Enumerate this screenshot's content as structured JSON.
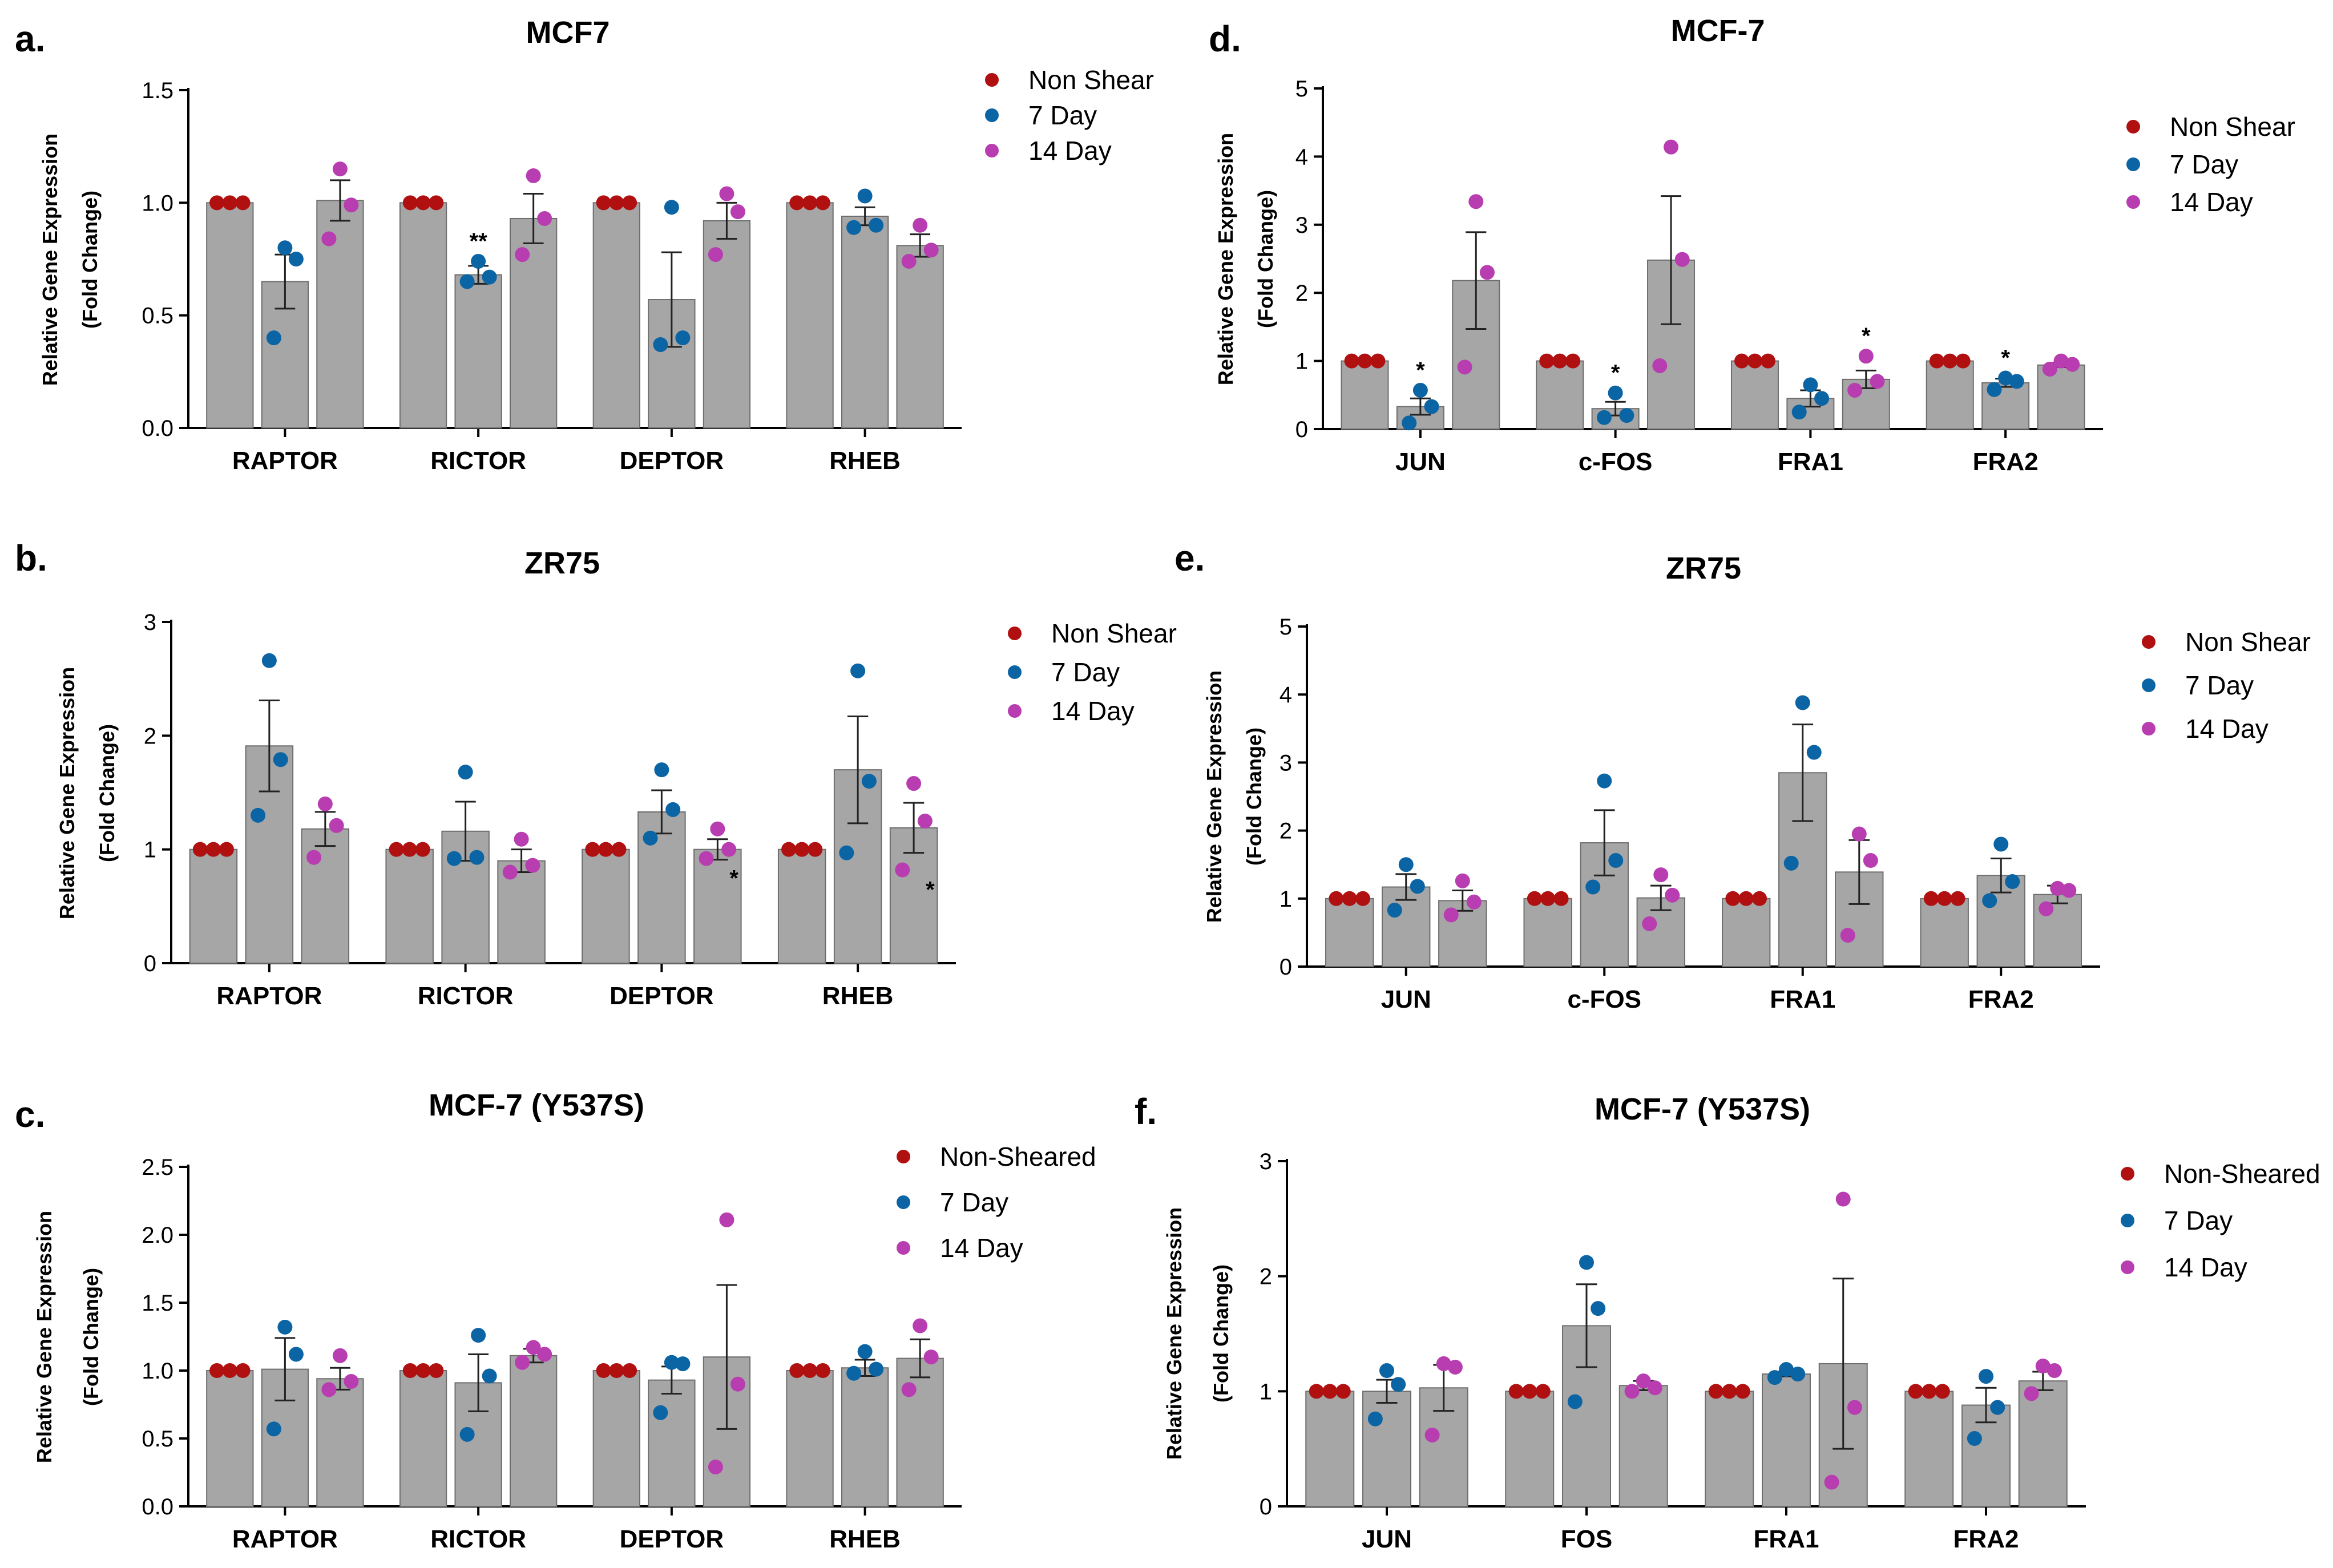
{
  "colors": {
    "non_shear": "#b01010",
    "day7": "#0b64a4",
    "day14": "#b83db0",
    "bar": "#a6a6a6",
    "bar_edge": "#6e6e6e"
  },
  "chart_data": [
    {
      "panel": "a.",
      "type": "bar",
      "title": "MCF7",
      "ylabel_line1": "Relative Gene Expression",
      "ylabel_line2": "(Fold Change)",
      "ylim": [
        0,
        1.5
      ],
      "yticks": [
        0,
        0.5,
        1.0,
        1.5
      ],
      "ytick_labels": [
        "0.0",
        "0.5",
        "1.0",
        "1.5"
      ],
      "categories": [
        "RAPTOR",
        "RICTOR",
        "DEPTOR",
        "RHEB"
      ],
      "legend": [
        "Non Shear",
        "7 Day",
        "14 Day"
      ],
      "series": [
        {
          "name": "Non Shear",
          "values": [
            1.0,
            1.0,
            1.0,
            1.0
          ],
          "sem": [
            0,
            0,
            0,
            0
          ],
          "points": [
            [
              1,
              1,
              1
            ],
            [
              1,
              1,
              1
            ],
            [
              1,
              1,
              1
            ],
            [
              1,
              1,
              1
            ]
          ],
          "sig": [
            "",
            "",
            "",
            ""
          ]
        },
        {
          "name": "7 Day",
          "values": [
            0.65,
            0.68,
            0.57,
            0.94
          ],
          "sem": [
            0.12,
            0.04,
            0.21,
            0.04
          ],
          "points": [
            [
              0.8,
              0.75,
              0.4
            ],
            [
              0.74,
              0.67,
              0.65
            ],
            [
              0.98,
              0.4,
              0.37
            ],
            [
              1.03,
              0.9,
              0.89
            ]
          ],
          "sig": [
            "",
            "**",
            "",
            ""
          ]
        },
        {
          "name": "14 Day",
          "values": [
            1.01,
            0.93,
            0.92,
            0.81
          ],
          "sem": [
            0.09,
            0.11,
            0.08,
            0.05
          ],
          "points": [
            [
              1.15,
              0.99,
              0.84
            ],
            [
              1.12,
              0.93,
              0.77
            ],
            [
              1.04,
              0.96,
              0.77
            ],
            [
              0.9,
              0.79,
              0.74
            ]
          ],
          "sig": [
            "",
            "",
            "",
            ""
          ]
        }
      ]
    },
    {
      "panel": "b.",
      "type": "bar",
      "title": "ZR75",
      "ylabel_line1": "Relative Gene Expression",
      "ylabel_line2": "(Fold Change)",
      "ylim": [
        0,
        3
      ],
      "yticks": [
        0,
        1,
        2,
        3
      ],
      "ytick_labels": [
        "0",
        "1",
        "2",
        "3"
      ],
      "categories": [
        "RAPTOR",
        "RICTOR",
        "DEPTOR",
        "RHEB"
      ],
      "legend": [
        "Non Shear",
        "7 Day",
        "14 Day"
      ],
      "series": [
        {
          "name": "Non Shear",
          "values": [
            1,
            1,
            1,
            1
          ],
          "sem": [
            0,
            0,
            0,
            0
          ],
          "points": [
            [
              1,
              1,
              1
            ],
            [
              1,
              1,
              1
            ],
            [
              1,
              1,
              1
            ],
            [
              1,
              1,
              1
            ]
          ],
          "sig": [
            "",
            "",
            "",
            ""
          ]
        },
        {
          "name": "7 Day",
          "values": [
            1.91,
            1.16,
            1.33,
            1.7
          ],
          "sem": [
            0.4,
            0.26,
            0.19,
            0.47
          ],
          "points": [
            [
              2.66,
              1.79,
              1.3
            ],
            [
              1.68,
              0.93,
              0.92
            ],
            [
              1.7,
              1.35,
              1.1
            ],
            [
              2.57,
              1.6,
              0.97
            ]
          ],
          "sig": [
            "",
            "",
            "",
            ""
          ]
        },
        {
          "name": "14 Day",
          "values": [
            1.18,
            0.9,
            1.0,
            1.19
          ],
          "sem": [
            0.15,
            0.1,
            0.09,
            0.22
          ],
          "points": [
            [
              1.4,
              1.21,
              0.93
            ],
            [
              1.09,
              0.86,
              0.8
            ],
            [
              1.18,
              1.0,
              0.92
            ],
            [
              1.58,
              1.25,
              0.82
            ]
          ],
          "sig": [
            "",
            "",
            "*",
            "*"
          ]
        }
      ]
    },
    {
      "panel": "c.",
      "type": "bar",
      "title": "MCF-7 (Y537S)",
      "ylabel_line1": "Relative Gene Expression",
      "ylabel_line2": "(Fold Change)",
      "ylim": [
        0,
        2.5
      ],
      "yticks": [
        0,
        0.5,
        1.0,
        1.5,
        2.0,
        2.5
      ],
      "ytick_labels": [
        "0.0",
        "0.5",
        "1.0",
        "1.5",
        "2.0",
        "2.5"
      ],
      "categories": [
        "RAPTOR",
        "RICTOR",
        "DEPTOR",
        "RHEB"
      ],
      "legend": [
        "Non-Sheared",
        "7 Day",
        "14 Day"
      ],
      "series": [
        {
          "name": "Non-Sheared",
          "values": [
            1,
            1,
            1,
            1
          ],
          "sem": [
            0,
            0,
            0,
            0
          ],
          "points": [
            [
              1,
              1,
              1
            ],
            [
              1,
              1,
              1
            ],
            [
              1,
              1,
              1
            ],
            [
              1,
              1,
              1
            ]
          ],
          "sig": [
            "",
            "",
            "",
            ""
          ]
        },
        {
          "name": "7 Day",
          "values": [
            1.01,
            0.91,
            0.93,
            1.02
          ],
          "sem": [
            0.23,
            0.21,
            0.1,
            0.06
          ],
          "points": [
            [
              1.32,
              1.12,
              0.57
            ],
            [
              1.26,
              0.96,
              0.53
            ],
            [
              1.06,
              1.05,
              0.69
            ],
            [
              1.14,
              1.01,
              0.98
            ]
          ],
          "sig": [
            "",
            "",
            "",
            ""
          ]
        },
        {
          "name": "14 Day",
          "values": [
            0.94,
            1.11,
            1.1,
            1.09
          ],
          "sem": [
            0.08,
            0.05,
            0.53,
            0.14
          ],
          "points": [
            [
              1.11,
              0.92,
              0.86
            ],
            [
              1.17,
              1.12,
              1.06
            ],
            [
              2.11,
              0.9,
              0.29
            ],
            [
              1.33,
              1.1,
              0.86
            ]
          ],
          "sig": [
            "",
            "",
            "",
            ""
          ]
        }
      ]
    },
    {
      "panel": "d.",
      "type": "bar",
      "title": "MCF-7",
      "ylabel_line1": "Relative Gene Expression",
      "ylabel_line2": "(Fold Change)",
      "ylim": [
        0,
        5
      ],
      "yticks": [
        0,
        1,
        2,
        3,
        4,
        5
      ],
      "ytick_labels": [
        "0",
        "1",
        "2",
        "3",
        "4",
        "5"
      ],
      "categories": [
        "JUN",
        "c-FOS",
        "FRA1",
        "FRA2"
      ],
      "legend": [
        "Non Shear",
        "7 Day",
        "14 Day"
      ],
      "series": [
        {
          "name": "Non Shear",
          "values": [
            1,
            1,
            1,
            1
          ],
          "sem": [
            0,
            0,
            0,
            0
          ],
          "points": [
            [
              1,
              1,
              1
            ],
            [
              1,
              1,
              1
            ],
            [
              1,
              1,
              1
            ],
            [
              1,
              1,
              1
            ]
          ],
          "sig": [
            "",
            "",
            "",
            ""
          ]
        },
        {
          "name": "7 Day",
          "values": [
            0.33,
            0.3,
            0.45,
            0.68
          ],
          "sem": [
            0.12,
            0.1,
            0.12,
            0.06
          ],
          "points": [
            [
              0.57,
              0.33,
              0.09
            ],
            [
              0.53,
              0.2,
              0.17
            ],
            [
              0.65,
              0.45,
              0.25
            ],
            [
              0.75,
              0.7,
              0.58
            ]
          ],
          "sig": [
            "*",
            "*",
            "",
            "*"
          ]
        },
        {
          "name": "14 Day",
          "values": [
            2.18,
            2.48,
            0.73,
            0.94
          ],
          "sem": [
            0.71,
            0.94,
            0.13,
            0.03
          ],
          "points": [
            [
              3.34,
              2.3,
              0.91
            ],
            [
              4.14,
              2.49,
              0.93
            ],
            [
              1.07,
              0.7,
              0.57
            ],
            [
              1.0,
              0.95,
              0.88
            ]
          ],
          "sig": [
            "",
            "",
            "*",
            ""
          ]
        }
      ]
    },
    {
      "panel": "e.",
      "type": "bar",
      "title": "ZR75",
      "ylabel_line1": "Relative Gene Expression",
      "ylabel_line2": "(Fold Change)",
      "ylim": [
        0,
        5
      ],
      "yticks": [
        0,
        1,
        2,
        3,
        4,
        5
      ],
      "ytick_labels": [
        "0",
        "1",
        "2",
        "3",
        "4",
        "5"
      ],
      "categories": [
        "JUN",
        "c-FOS",
        "FRA1",
        "FRA2"
      ],
      "legend": [
        "Non Shear",
        "7 Day",
        "14 Day"
      ],
      "series": [
        {
          "name": "Non Shear",
          "values": [
            1,
            1,
            1,
            1
          ],
          "sem": [
            0,
            0,
            0,
            0
          ],
          "points": [
            [
              1,
              1,
              1
            ],
            [
              1,
              1,
              1
            ],
            [
              1,
              1,
              1
            ],
            [
              1,
              1,
              1
            ]
          ],
          "sig": [
            "",
            "",
            "",
            ""
          ]
        },
        {
          "name": "7 Day",
          "values": [
            1.17,
            1.82,
            2.85,
            1.34
          ],
          "sem": [
            0.19,
            0.48,
            0.71,
            0.25
          ],
          "points": [
            [
              1.5,
              1.18,
              0.83
            ],
            [
              2.73,
              1.56,
              1.17
            ],
            [
              3.88,
              3.15,
              1.52
            ],
            [
              1.8,
              1.25,
              0.97
            ]
          ],
          "sig": [
            "",
            "",
            "",
            ""
          ]
        },
        {
          "name": "14 Day",
          "values": [
            0.97,
            1.01,
            1.39,
            1.06
          ],
          "sem": [
            0.15,
            0.18,
            0.47,
            0.13
          ],
          "points": [
            [
              1.26,
              0.95,
              0.76
            ],
            [
              1.35,
              1.05,
              0.63
            ],
            [
              1.95,
              1.56,
              0.46
            ],
            [
              1.15,
              1.12,
              0.85
            ]
          ],
          "sig": [
            "",
            "",
            "",
            ""
          ]
        }
      ]
    },
    {
      "panel": "f.",
      "type": "bar",
      "title": "MCF-7 (Y537S)",
      "ylabel_line1": "Relative Gene Expression",
      "ylabel_line2": "(Fold Change)",
      "ylim": [
        0,
        3
      ],
      "yticks": [
        0,
        1,
        2,
        3
      ],
      "ytick_labels": [
        "0",
        "1",
        "2",
        "3"
      ],
      "categories": [
        "JUN",
        "FOS",
        "FRA1",
        "FRA2"
      ],
      "legend": [
        "Non-Sheared",
        "7 Day",
        "14 Day"
      ],
      "series": [
        {
          "name": "Non-Sheared",
          "values": [
            1,
            1,
            1,
            1
          ],
          "sem": [
            0,
            0,
            0,
            0
          ],
          "points": [
            [
              1,
              1,
              1
            ],
            [
              1,
              1,
              1
            ],
            [
              1,
              1,
              1
            ],
            [
              1,
              1,
              1
            ]
          ],
          "sig": [
            "",
            "",
            "",
            ""
          ]
        },
        {
          "name": "7 Day",
          "values": [
            1.0,
            1.57,
            1.15,
            0.88
          ],
          "sem": [
            0.1,
            0.36,
            0.02,
            0.15
          ],
          "points": [
            [
              1.18,
              1.06,
              0.76
            ],
            [
              2.12,
              1.72,
              0.91
            ],
            [
              1.19,
              1.15,
              1.12
            ],
            [
              1.13,
              0.86,
              0.59
            ]
          ],
          "sig": [
            "",
            "",
            "",
            ""
          ]
        },
        {
          "name": "14 Day",
          "values": [
            1.03,
            1.05,
            1.24,
            1.09
          ],
          "sem": [
            0.2,
            0.04,
            0.74,
            0.08
          ],
          "points": [
            [
              1.24,
              1.21,
              0.62
            ],
            [
              1.09,
              1.03,
              1.0
            ],
            [
              2.67,
              0.86,
              0.21
            ],
            [
              1.22,
              1.18,
              0.98
            ]
          ],
          "sig": [
            "",
            "",
            "",
            ""
          ]
        }
      ]
    }
  ]
}
